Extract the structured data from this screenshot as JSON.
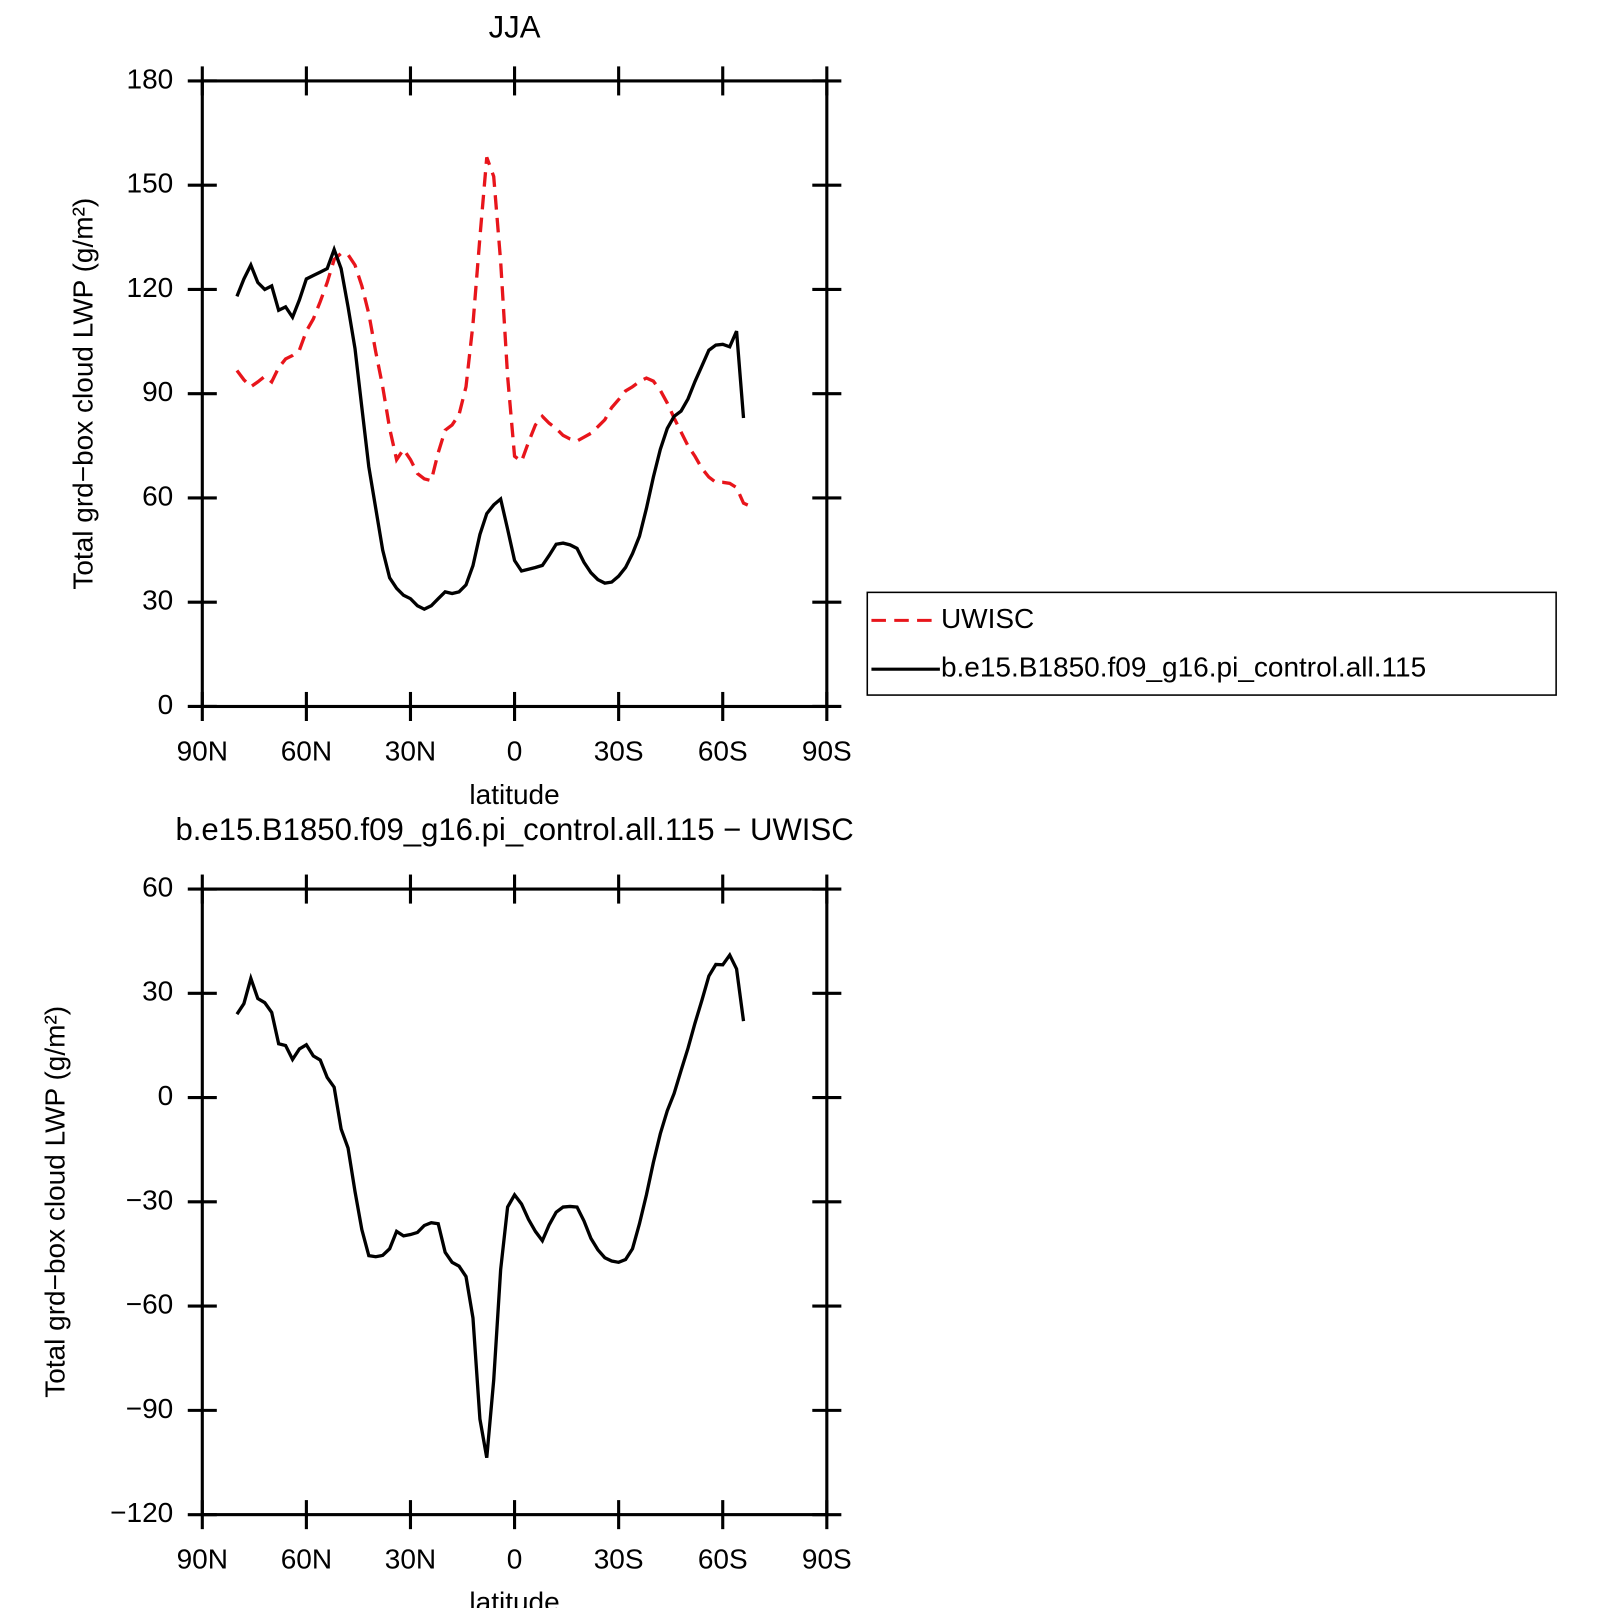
{
  "chart_data": [
    {
      "type": "line",
      "title": "JJA",
      "x_label": "latitude",
      "y_label": "Total grd−box cloud LWP (g/m²)",
      "xlim": [
        90,
        -90
      ],
      "xticks": [
        {
          "value": 90,
          "label": "90N"
        },
        {
          "value": 60,
          "label": "60N"
        },
        {
          "value": 30,
          "label": "30N"
        },
        0,
        {
          "value": -30,
          "label": "30S"
        },
        {
          "value": -60,
          "label": "60S"
        },
        {
          "value": -90,
          "label": "90S"
        }
      ],
      "ylim": [
        0,
        180
      ],
      "yticks": [
        0,
        30,
        60,
        90,
        120,
        150,
        180
      ],
      "legend": "right",
      "x": [
        80,
        78,
        76,
        74,
        72,
        70,
        68,
        66,
        64,
        62,
        60,
        58,
        56,
        54,
        52,
        50,
        48,
        46,
        44,
        42,
        40,
        38,
        36,
        34,
        32,
        30,
        28,
        26,
        24,
        22,
        20,
        18,
        16,
        14,
        12,
        10,
        8,
        6,
        4,
        2,
        0,
        -2,
        -4,
        -6,
        -8,
        -10,
        -12,
        -14,
        -16,
        -18,
        -20,
        -22,
        -24,
        -26,
        -28,
        -30,
        -32,
        -34,
        -36,
        -38,
        -40,
        -42,
        -44,
        -46,
        -48,
        -50,
        -52,
        -54,
        -56,
        -58,
        -60,
        -62,
        -64,
        -66,
        -68
      ],
      "series": [
        {
          "name": "UWISC",
          "color": "#e8151b",
          "style": "dashed",
          "values": [
            96.7,
            94,
            92,
            93.4,
            95,
            93.4,
            97.5,
            100,
            101,
            102.5,
            108,
            111.5,
            116.5,
            122,
            128.6,
            130.4,
            130,
            127,
            121,
            113,
            102,
            92,
            80,
            71,
            74,
            71,
            67,
            65.5,
            65,
            73,
            79.5,
            81,
            84,
            92,
            110,
            135,
            158,
            152.5,
            128,
            95,
            72,
            70.5,
            76,
            81,
            83.5,
            81.5,
            80,
            78,
            77,
            76.4,
            77.5,
            78.6,
            80.5,
            82.5,
            86,
            88.3,
            90.8,
            92,
            93.5,
            94.5,
            93.6,
            91,
            87.3,
            83,
            79,
            75,
            72,
            68.5,
            66,
            64.5,
            64.5,
            64.2,
            63,
            58.5,
            57.6
          ]
        },
        {
          "name": "b.e15.B1850.f09_g16.pi_control.all.115",
          "color": "#000000",
          "style": "solid",
          "values": [
            118,
            123,
            127,
            122,
            120,
            121,
            114,
            115,
            112,
            117,
            123,
            124,
            125,
            126,
            131.5,
            126,
            115,
            103,
            86,
            69,
            57,
            45,
            37,
            34,
            32,
            31,
            29,
            28,
            29,
            31,
            33,
            32.5,
            33,
            35,
            40.5,
            49.5,
            55.5,
            58,
            59.7,
            51,
            42,
            39,
            39.5,
            40,
            40.6,
            43.5,
            46.7,
            47,
            46.5,
            45.5,
            41.5,
            38.5,
            36.5,
            35.5,
            35.8,
            37.5,
            40,
            44,
            49,
            57,
            66,
            74,
            80,
            83.5,
            85,
            88.5,
            93.5,
            98,
            102.5,
            104,
            104.2,
            103.5,
            108,
            83,
            null
          ]
        }
      ]
    },
    {
      "type": "line",
      "title": "b.e15.B1850.f09_g16.pi_control.all.115 − UWISC",
      "x_label": "latitude",
      "y_label": "Total grd−box cloud LWP (g/m²)",
      "xlim": [
        90,
        -90
      ],
      "xticks": [
        {
          "value": 90,
          "label": "90N"
        },
        {
          "value": 60,
          "label": "60N"
        },
        {
          "value": 30,
          "label": "30N"
        },
        0,
        {
          "value": -30,
          "label": "30S"
        },
        {
          "value": -60,
          "label": "60S"
        },
        {
          "value": -90,
          "label": "90S"
        }
      ],
      "ylim": [
        -120,
        60
      ],
      "yticks": [
        {
          "value": -120,
          "label": "−120"
        },
        {
          "value": -90,
          "label": "−90"
        },
        {
          "value": -60,
          "label": "−60"
        },
        {
          "value": -30,
          "label": "−30"
        },
        0,
        30,
        60
      ],
      "x": [
        80,
        78,
        76,
        74,
        72,
        70,
        68,
        66,
        64,
        62,
        60,
        58,
        56,
        54,
        52,
        50,
        48,
        46,
        44,
        42,
        40,
        38,
        36,
        34,
        32,
        30,
        28,
        26,
        24,
        22,
        20,
        18,
        16,
        14,
        12,
        10,
        8,
        6,
        4,
        2,
        0,
        -2,
        -4,
        -6,
        -8,
        -10,
        -12,
        -14,
        -16,
        -18,
        -20,
        -22,
        -24,
        -26,
        -28,
        -30,
        -32,
        -34,
        -36,
        -38,
        -40,
        -42,
        -44,
        -46,
        -48,
        -50,
        -52,
        -54,
        -56,
        -58,
        -60,
        -62,
        -64,
        -66,
        -68
      ],
      "color": "#000000",
      "values": [
        24,
        27,
        34.3,
        28.5,
        27.3,
        24.5,
        15.5,
        15,
        11,
        14,
        15.2,
        12,
        10.8,
        5.8,
        3,
        -9,
        -14.5,
        -27,
        -38,
        -45.5,
        -45.8,
        -45.4,
        -43.5,
        -38.5,
        -39.8,
        -39.4,
        -38.8,
        -36.8,
        -36,
        -36.3,
        -44.5,
        -47.4,
        -48.5,
        -51.5,
        -63.4,
        -92.5,
        -103.6,
        -81.3,
        -49.5,
        -31.5,
        -28,
        -30.6,
        -35,
        -38.5,
        -41.2,
        -36.6,
        -33,
        -31.5,
        -31.3,
        -31.5,
        -35.5,
        -40.5,
        -43.8,
        -46.1,
        -47,
        -47.4,
        -46.6,
        -43.5,
        -36.3,
        -28,
        -18.7,
        -10.4,
        -3.8,
        1.2,
        7.8,
        14.2,
        21.4,
        28,
        35,
        38.3,
        38.2,
        41,
        37,
        22,
        null
      ]
    }
  ]
}
